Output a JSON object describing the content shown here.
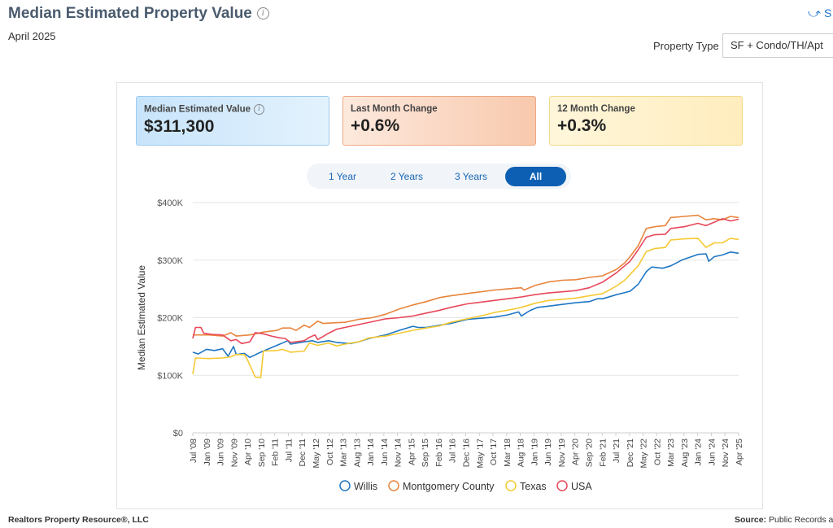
{
  "header": {
    "title": "Median Estimated Property Value",
    "subtitle": "April 2025",
    "share_label": "S",
    "property_type_label": "Property Type",
    "property_type_value": "SF + Condo/TH/Apt"
  },
  "kpis": [
    {
      "label": "Median Estimated Value",
      "value": "$311,300"
    },
    {
      "label": "Last Month Change",
      "value": "+0.6%"
    },
    {
      "label": "12 Month Change",
      "value": "+0.3%"
    }
  ],
  "tabs": [
    {
      "label": "1 Year",
      "active": false
    },
    {
      "label": "2 Years",
      "active": false
    },
    {
      "label": "3 Years",
      "active": false
    },
    {
      "label": "All",
      "active": true
    }
  ],
  "footer": {
    "left": "Realtors Property Resource®, LLC",
    "right_label": "Source:",
    "right_value": "Public Records ar"
  },
  "icons": {
    "info": "info-icon",
    "share": "share-icon"
  },
  "chart_data": {
    "type": "line",
    "ylabel": "Median Estimated Value",
    "ylim": [
      0,
      400000
    ],
    "yticks": [
      0,
      100000,
      200000,
      300000,
      400000
    ],
    "ytick_labels": [
      "$0",
      "$100K",
      "$200K",
      "$300K",
      "$400K"
    ],
    "xlim": [
      "2008-07",
      "2025-04"
    ],
    "xtick_labels": [
      "Jul '08",
      "Jan '09",
      "Jun '09",
      "Nov '09",
      "Apr '10",
      "Sep '10",
      "Feb '11",
      "Jul '11",
      "Dec '11",
      "May '12",
      "Oct '12",
      "Mar '13",
      "Aug '13",
      "Jan '14",
      "Jun '14",
      "Nov '14",
      "Apr '15",
      "Sep '15",
      "Feb '16",
      "Jul '16",
      "Dec '16",
      "May '17",
      "Oct '17",
      "Mar '18",
      "Aug '18",
      "Jan '19",
      "Jun '19",
      "Nov '19",
      "Apr '20",
      "Sep '20",
      "Feb '21",
      "Jul '21",
      "Dec '21",
      "May '22",
      "Oct '22",
      "Mar '23",
      "Aug '23",
      "Jan '24",
      "Jun '24",
      "Nov '24",
      "Apr '25"
    ],
    "grid": true,
    "legend_position": "bottom",
    "series": [
      {
        "name": "Willis",
        "color": "#1f77c4",
        "points": [
          [
            "2008-07",
            140000
          ],
          [
            "2008-09",
            137000
          ],
          [
            "2008-12",
            145000
          ],
          [
            "2009-03",
            143000
          ],
          [
            "2009-06",
            146000
          ],
          [
            "2009-08",
            133000
          ],
          [
            "2009-10",
            150000
          ],
          [
            "2009-11",
            136000
          ],
          [
            "2010-02",
            138000
          ],
          [
            "2010-04",
            131000
          ],
          [
            "2010-08",
            140000
          ],
          [
            "2011-01",
            150000
          ],
          [
            "2011-06",
            160000
          ],
          [
            "2011-07",
            154000
          ],
          [
            "2011-12",
            158000
          ],
          [
            "2012-03",
            160000
          ],
          [
            "2012-05",
            157000
          ],
          [
            "2012-09",
            160000
          ],
          [
            "2012-12",
            157000
          ],
          [
            "2013-05",
            155000
          ],
          [
            "2013-08",
            158000
          ],
          [
            "2013-12",
            164000
          ],
          [
            "2014-06",
            170000
          ],
          [
            "2014-11",
            178000
          ],
          [
            "2015-04",
            185000
          ],
          [
            "2015-06",
            183000
          ],
          [
            "2015-09",
            183000
          ],
          [
            "2016-02",
            187000
          ],
          [
            "2016-06",
            190000
          ],
          [
            "2016-12",
            197000
          ],
          [
            "2017-05",
            199000
          ],
          [
            "2017-10",
            201000
          ],
          [
            "2018-03",
            205000
          ],
          [
            "2018-07",
            210000
          ],
          [
            "2018-08",
            203000
          ],
          [
            "2018-11",
            212000
          ],
          [
            "2019-02",
            218000
          ],
          [
            "2019-06",
            220000
          ],
          [
            "2019-11",
            223000
          ],
          [
            "2020-04",
            226000
          ],
          [
            "2020-09",
            228000
          ],
          [
            "2020-12",
            233000
          ],
          [
            "2021-02",
            233000
          ],
          [
            "2021-07",
            240000
          ],
          [
            "2021-12",
            246000
          ],
          [
            "2022-03",
            258000
          ],
          [
            "2022-06",
            280000
          ],
          [
            "2022-08",
            288000
          ],
          [
            "2022-12",
            286000
          ],
          [
            "2023-03",
            290000
          ],
          [
            "2023-07",
            300000
          ],
          [
            "2024-01",
            310000
          ],
          [
            "2024-04",
            311000
          ],
          [
            "2024-05",
            298000
          ],
          [
            "2024-07",
            306000
          ],
          [
            "2024-10",
            309000
          ],
          [
            "2025-01",
            314000
          ],
          [
            "2025-04",
            312000
          ]
        ]
      },
      {
        "name": "Montgomery County",
        "color": "#e8853d",
        "points": [
          [
            "2008-07",
            170000
          ],
          [
            "2009-01",
            170000
          ],
          [
            "2009-06",
            168000
          ],
          [
            "2009-09",
            174000
          ],
          [
            "2009-11",
            168000
          ],
          [
            "2010-04",
            170000
          ],
          [
            "2010-09",
            175000
          ],
          [
            "2011-02",
            178000
          ],
          [
            "2011-04",
            182000
          ],
          [
            "2011-07",
            182000
          ],
          [
            "2011-09",
            178000
          ],
          [
            "2011-12",
            187000
          ],
          [
            "2012-02",
            183000
          ],
          [
            "2012-05",
            194000
          ],
          [
            "2012-07",
            190000
          ],
          [
            "2012-10",
            191000
          ],
          [
            "2013-03",
            192000
          ],
          [
            "2013-08",
            197000
          ],
          [
            "2014-01",
            200000
          ],
          [
            "2014-06",
            206000
          ],
          [
            "2014-11",
            215000
          ],
          [
            "2015-04",
            222000
          ],
          [
            "2015-09",
            228000
          ],
          [
            "2016-02",
            235000
          ],
          [
            "2016-06",
            238000
          ],
          [
            "2016-12",
            242000
          ],
          [
            "2017-05",
            245000
          ],
          [
            "2017-10",
            248000
          ],
          [
            "2018-03",
            250000
          ],
          [
            "2018-08",
            252000
          ],
          [
            "2018-09",
            248000
          ],
          [
            "2019-01",
            256000
          ],
          [
            "2019-06",
            262000
          ],
          [
            "2019-11",
            265000
          ],
          [
            "2020-04",
            266000
          ],
          [
            "2020-09",
            270000
          ],
          [
            "2021-02",
            273000
          ],
          [
            "2021-07",
            284000
          ],
          [
            "2021-10",
            295000
          ],
          [
            "2021-12",
            306000
          ],
          [
            "2022-03",
            325000
          ],
          [
            "2022-06",
            355000
          ],
          [
            "2022-09",
            358000
          ],
          [
            "2023-01",
            360000
          ],
          [
            "2023-03",
            374000
          ],
          [
            "2023-08",
            376000
          ],
          [
            "2024-01",
            378000
          ],
          [
            "2024-04",
            370000
          ],
          [
            "2024-07",
            372000
          ],
          [
            "2024-10",
            370000
          ],
          [
            "2025-01",
            376000
          ],
          [
            "2025-04",
            374000
          ]
        ]
      },
      {
        "name": "Texas",
        "color": "#f5c932",
        "points": [
          [
            "2008-07",
            102000
          ],
          [
            "2008-08",
            130000
          ],
          [
            "2009-01",
            129000
          ],
          [
            "2009-06",
            130000
          ],
          [
            "2009-09",
            132000
          ],
          [
            "2009-11",
            136000
          ],
          [
            "2010-02",
            136000
          ],
          [
            "2010-03",
            128000
          ],
          [
            "2010-06",
            97000
          ],
          [
            "2010-08",
            96000
          ],
          [
            "2010-09",
            142000
          ],
          [
            "2011-02",
            143000
          ],
          [
            "2011-04",
            145000
          ],
          [
            "2011-07",
            140000
          ],
          [
            "2011-12",
            142000
          ],
          [
            "2012-02",
            156000
          ],
          [
            "2012-05",
            152000
          ],
          [
            "2012-09",
            156000
          ],
          [
            "2012-12",
            151000
          ],
          [
            "2013-03",
            154000
          ],
          [
            "2013-08",
            158000
          ],
          [
            "2013-12",
            165000
          ],
          [
            "2014-06",
            168000
          ],
          [
            "2014-11",
            173000
          ],
          [
            "2015-04",
            178000
          ],
          [
            "2015-09",
            182000
          ],
          [
            "2016-02",
            186000
          ],
          [
            "2016-06",
            192000
          ],
          [
            "2016-12",
            198000
          ],
          [
            "2017-05",
            203000
          ],
          [
            "2017-10",
            209000
          ],
          [
            "2018-03",
            213000
          ],
          [
            "2018-08",
            218000
          ],
          [
            "2019-01",
            225000
          ],
          [
            "2019-06",
            230000
          ],
          [
            "2019-11",
            232000
          ],
          [
            "2020-04",
            234000
          ],
          [
            "2020-09",
            238000
          ],
          [
            "2021-02",
            242000
          ],
          [
            "2021-07",
            255000
          ],
          [
            "2021-10",
            265000
          ],
          [
            "2021-12",
            275000
          ],
          [
            "2022-03",
            290000
          ],
          [
            "2022-06",
            315000
          ],
          [
            "2022-09",
            320000
          ],
          [
            "2023-01",
            322000
          ],
          [
            "2023-03",
            335000
          ],
          [
            "2023-08",
            337000
          ],
          [
            "2024-01",
            338000
          ],
          [
            "2024-04",
            322000
          ],
          [
            "2024-07",
            330000
          ],
          [
            "2024-10",
            330000
          ],
          [
            "2025-01",
            338000
          ],
          [
            "2025-04",
            336000
          ]
        ]
      },
      {
        "name": "USA",
        "color": "#e8485a",
        "points": [
          [
            "2008-07",
            164000
          ],
          [
            "2008-08",
            183000
          ],
          [
            "2008-10",
            183000
          ],
          [
            "2008-11",
            173000
          ],
          [
            "2009-02",
            171000
          ],
          [
            "2009-06",
            170000
          ],
          [
            "2009-09",
            160000
          ],
          [
            "2009-11",
            162000
          ],
          [
            "2010-01",
            155000
          ],
          [
            "2010-04",
            158000
          ],
          [
            "2010-06",
            174000
          ],
          [
            "2010-09",
            172000
          ],
          [
            "2010-12",
            168000
          ],
          [
            "2011-03",
            165000
          ],
          [
            "2011-05",
            164000
          ],
          [
            "2011-07",
            157000
          ],
          [
            "2011-12",
            160000
          ],
          [
            "2012-02",
            166000
          ],
          [
            "2012-04",
            170000
          ],
          [
            "2012-05",
            162000
          ],
          [
            "2012-09",
            173000
          ],
          [
            "2012-12",
            180000
          ],
          [
            "2013-03",
            183000
          ],
          [
            "2013-08",
            188000
          ],
          [
            "2014-01",
            193000
          ],
          [
            "2014-06",
            198000
          ],
          [
            "2014-11",
            200000
          ],
          [
            "2015-04",
            203000
          ],
          [
            "2015-09",
            208000
          ],
          [
            "2016-02",
            213000
          ],
          [
            "2016-06",
            218000
          ],
          [
            "2016-12",
            224000
          ],
          [
            "2017-05",
            227000
          ],
          [
            "2017-10",
            230000
          ],
          [
            "2018-03",
            233000
          ],
          [
            "2018-08",
            236000
          ],
          [
            "2019-01",
            240000
          ],
          [
            "2019-06",
            243000
          ],
          [
            "2019-11",
            245000
          ],
          [
            "2020-04",
            247000
          ],
          [
            "2020-09",
            252000
          ],
          [
            "2021-02",
            262000
          ],
          [
            "2021-07",
            278000
          ],
          [
            "2021-10",
            290000
          ],
          [
            "2021-12",
            298000
          ],
          [
            "2022-03",
            318000
          ],
          [
            "2022-06",
            340000
          ],
          [
            "2022-09",
            344000
          ],
          [
            "2023-01",
            345000
          ],
          [
            "2023-03",
            355000
          ],
          [
            "2023-08",
            358000
          ],
          [
            "2024-01",
            364000
          ],
          [
            "2024-04",
            360000
          ],
          [
            "2024-07",
            366000
          ],
          [
            "2024-10",
            372000
          ],
          [
            "2025-01",
            368000
          ],
          [
            "2025-04",
            371000
          ]
        ]
      }
    ]
  }
}
